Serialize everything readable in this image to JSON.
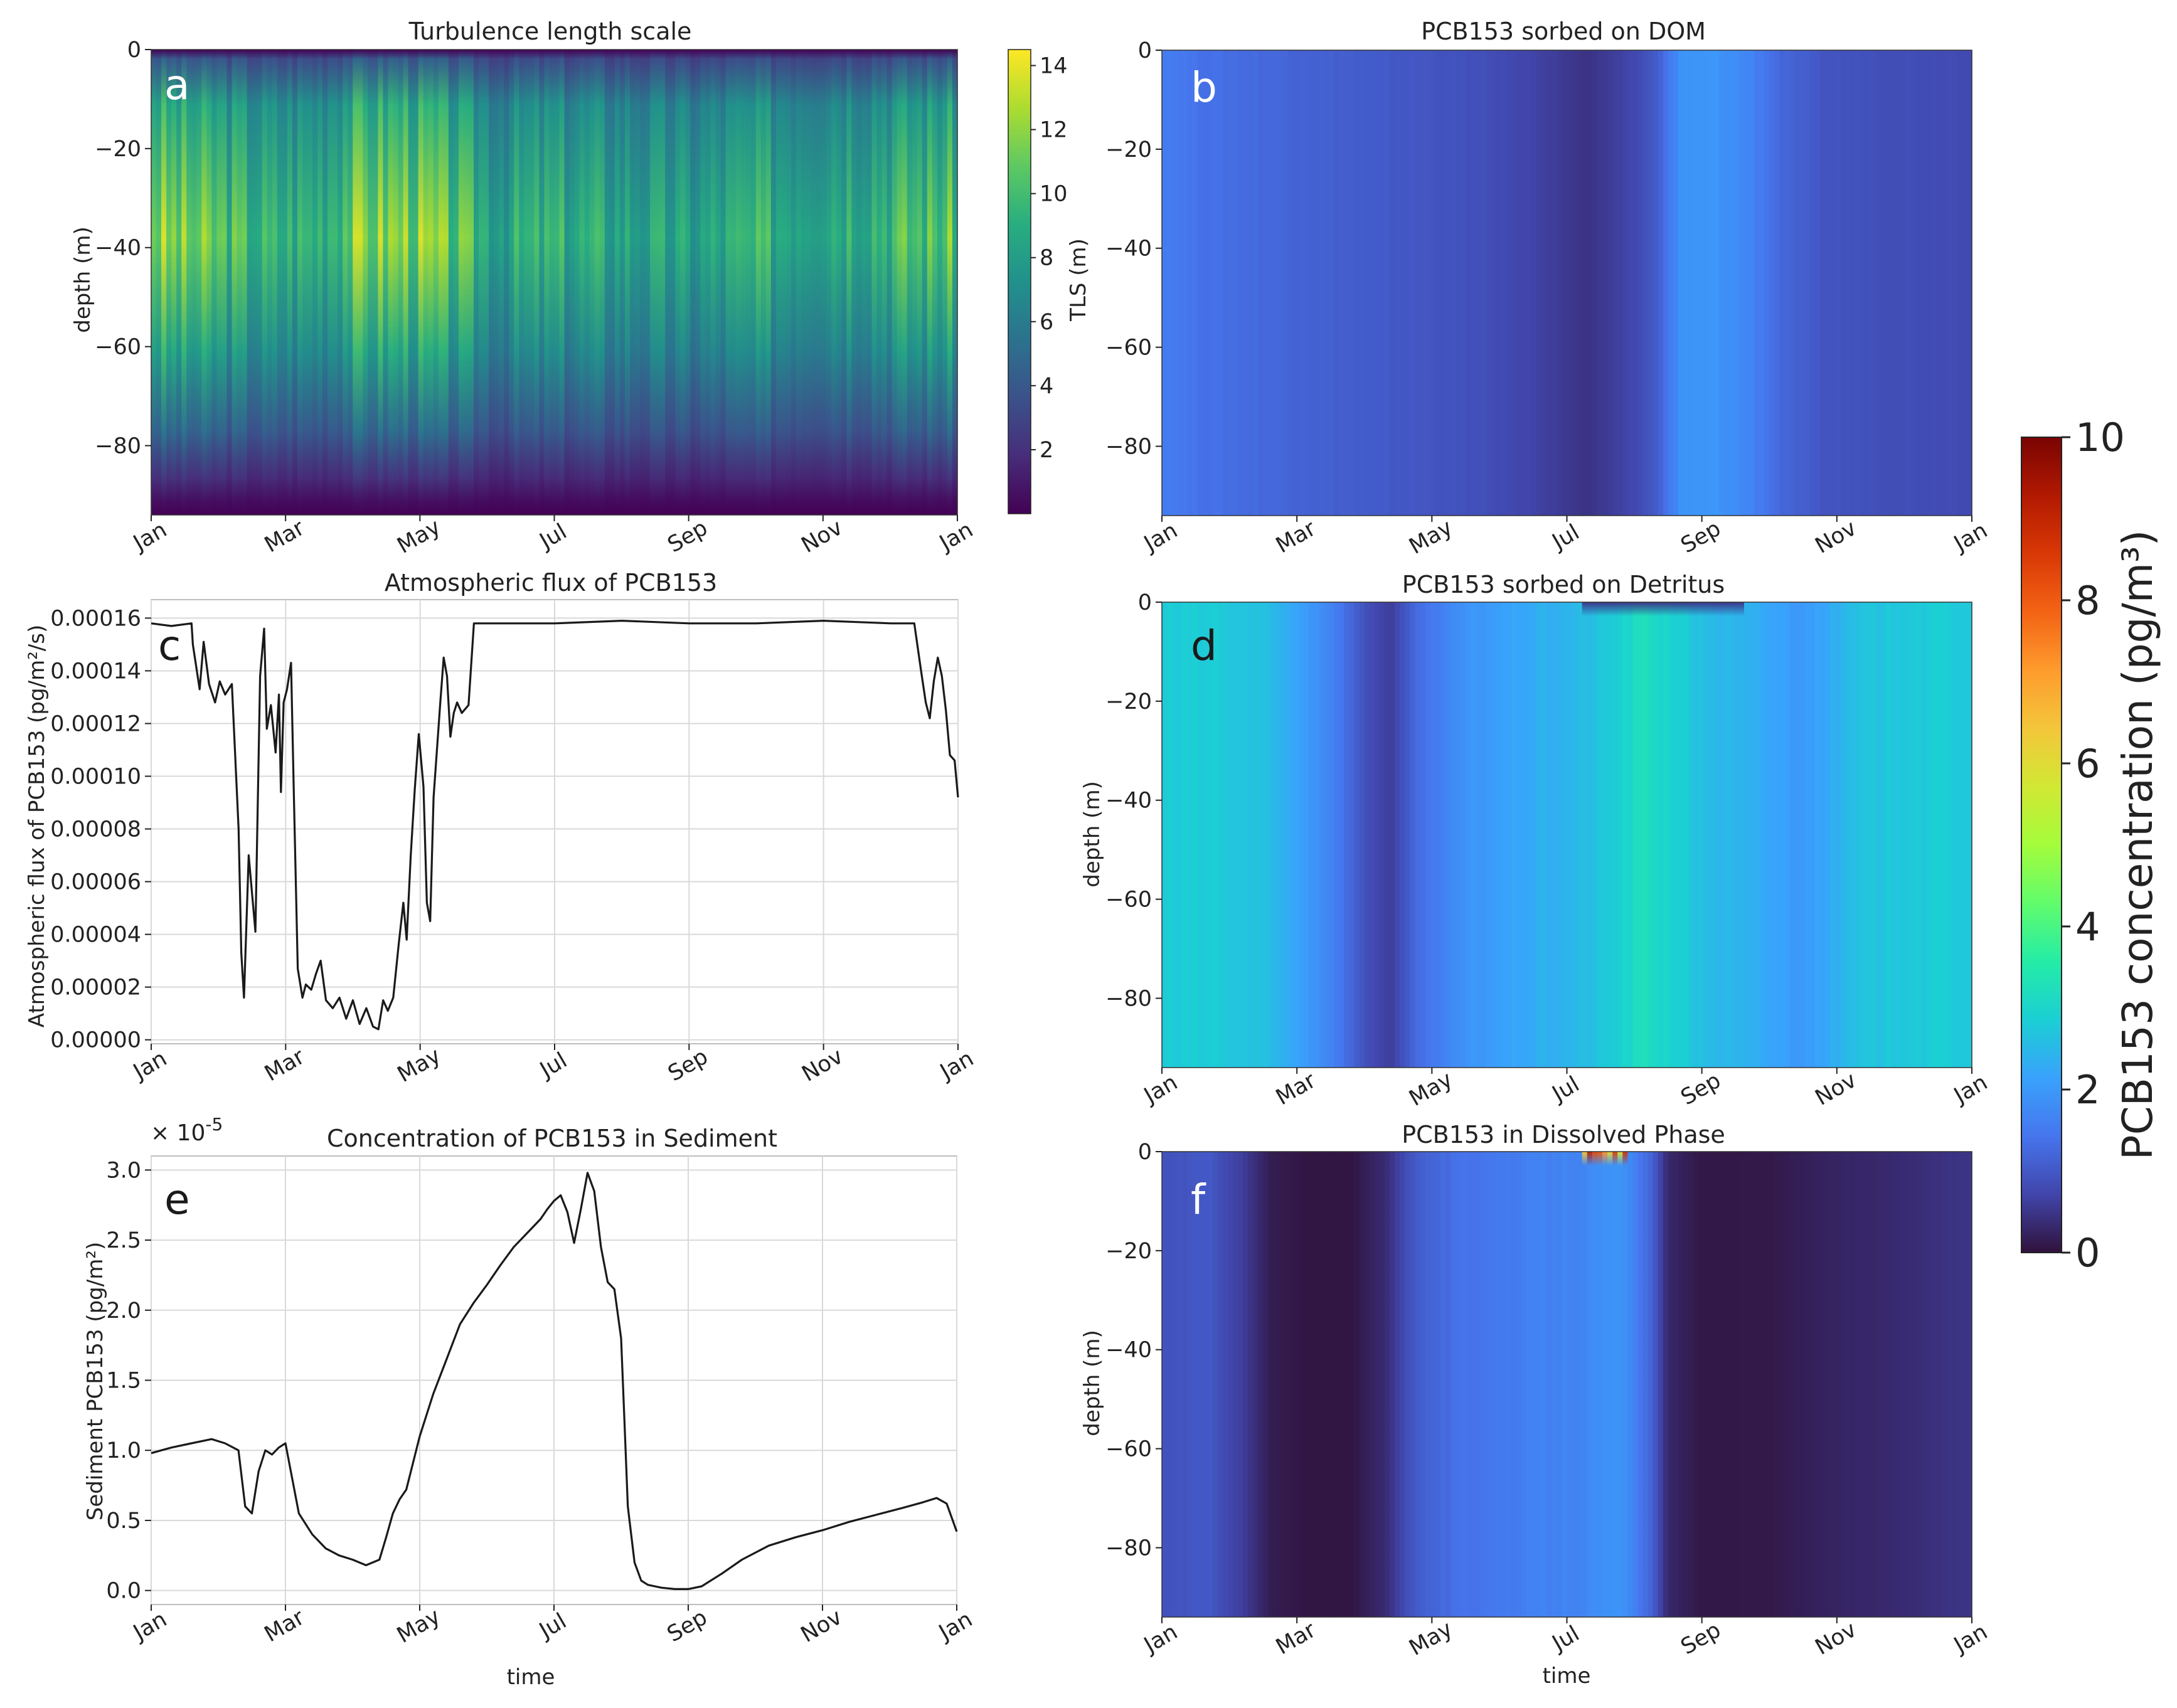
{
  "colors": {
    "viridis": [
      "#440154",
      "#472d7b",
      "#3b528b",
      "#2c728e",
      "#21918c",
      "#28ae80",
      "#5ec962",
      "#addc30",
      "#fde725"
    ],
    "turbo": [
      "#30123b",
      "#4145ab",
      "#4675ed",
      "#39a2fc",
      "#1bcfd4",
      "#24eca6",
      "#61fc6c",
      "#a4fc3b",
      "#d1e834",
      "#f3c63a",
      "#fe9b2d",
      "#f36315",
      "#d93806",
      "#b11901",
      "#7a0403"
    ],
    "line": "#1a1a1a",
    "grid": "#d9d9d9"
  },
  "shared_colorbar": {
    "label": "PCB153 concentration (pg/m³)",
    "ticks": [
      "10",
      "8",
      "6",
      "4",
      "2",
      "0"
    ],
    "range": [
      0,
      10
    ],
    "colormap": "turbo"
  },
  "chart_data": [
    {
      "id": "a",
      "type": "heatmap",
      "panel_letter": "a",
      "title": "Turbulence length scale",
      "ylabel": "depth (m)",
      "xlabel": "",
      "x_ticks": [
        "Jan",
        "Mar",
        "May",
        "Jul",
        "Sep",
        "Nov",
        "Jan"
      ],
      "y_ticks": [
        "0",
        "−20",
        "−40",
        "−60",
        "−80"
      ],
      "y_tick_values": [
        0,
        -20,
        -40,
        -60,
        -80
      ],
      "ylim": [
        -94,
        0
      ],
      "xlim_months": [
        0,
        12
      ],
      "colormap": "viridis",
      "colorbar": {
        "label": "TLS (m)",
        "ticks": [
          "14",
          "12",
          "10",
          "8",
          "6",
          "4",
          "2"
        ],
        "tick_values": [
          14,
          12,
          10,
          8,
          6,
          4,
          2
        ],
        "range": [
          0,
          14.5
        ]
      },
      "profile_peak_depth_m": -38,
      "seasonal_tls_peak_m": [
        {
          "month": 0.0,
          "tls": 12.5
        },
        {
          "month": 0.5,
          "tls": 11.5
        },
        {
          "month": 1.0,
          "tls": 11
        },
        {
          "month": 1.8,
          "tls": 9.5
        },
        {
          "month": 2.5,
          "tls": 10
        },
        {
          "month": 3.0,
          "tls": 12
        },
        {
          "month": 3.8,
          "tls": 12.5
        },
        {
          "month": 4.5,
          "tls": 11
        },
        {
          "month": 5.2,
          "tls": 9
        },
        {
          "month": 6.0,
          "tls": 9.5
        },
        {
          "month": 7.0,
          "tls": 9
        },
        {
          "month": 8.0,
          "tls": 8.5
        },
        {
          "month": 9.0,
          "tls": 9.5
        },
        {
          "month": 10.0,
          "tls": 10
        },
        {
          "month": 11.0,
          "tls": 10.5
        },
        {
          "month": 12.0,
          "tls": 11
        }
      ]
    },
    {
      "id": "b",
      "type": "heatmap",
      "panel_letter": "b",
      "title": "PCB153 sorbed on DOM",
      "ylabel": "",
      "xlabel": "",
      "x_ticks": [
        "Jan",
        "Mar",
        "May",
        "Jul",
        "Sep",
        "Nov",
        "Jan"
      ],
      "y_ticks": [
        "0",
        "−20",
        "−40",
        "−60",
        "−80"
      ],
      "y_tick_values": [
        0,
        -20,
        -40,
        -60,
        -80
      ],
      "ylim": [
        -94,
        0
      ],
      "xlim_months": [
        0,
        12
      ],
      "colormap": "turbo",
      "value_range": [
        0,
        10
      ],
      "seasonal_concentration": [
        {
          "month": 0.0,
          "value": 1.6
        },
        {
          "month": 0.5,
          "value": 1.4
        },
        {
          "month": 1.5,
          "value": 1.25
        },
        {
          "month": 3.0,
          "value": 1.05
        },
        {
          "month": 4.5,
          "value": 0.9
        },
        {
          "month": 5.5,
          "value": 0.7
        },
        {
          "month": 6.3,
          "value": 0.45
        },
        {
          "month": 6.9,
          "value": 0.7
        },
        {
          "month": 7.3,
          "value": 1.0
        },
        {
          "month": 7.7,
          "value": 1.9
        },
        {
          "month": 8.2,
          "value": 1.95
        },
        {
          "month": 8.7,
          "value": 1.7
        },
        {
          "month": 9.2,
          "value": 1.2
        },
        {
          "month": 9.8,
          "value": 0.95
        },
        {
          "month": 11.0,
          "value": 0.85
        },
        {
          "month": 12.0,
          "value": 0.8
        }
      ]
    },
    {
      "id": "c",
      "type": "line",
      "panel_letter": "c",
      "title": "Atmospheric flux of PCB153",
      "ylabel": "Atmospheric flux of PCB153 (pg/m²/s)",
      "xlabel": "",
      "x_ticks": [
        "Jan",
        "Mar",
        "May",
        "Jul",
        "Sep",
        "Nov",
        "Jan"
      ],
      "y_ticks": [
        "0.00016",
        "0.00014",
        "0.00012",
        "0.00010",
        "0.00008",
        "0.00006",
        "0.00004",
        "0.00002",
        "0.00000"
      ],
      "y_tick_values": [
        0.00016,
        0.00014,
        0.00012,
        0.0001,
        8e-05,
        6e-05,
        4e-05,
        2e-05,
        0
      ],
      "ylim": [
        -1.5e-06,
        0.000167
      ],
      "xlim_months": [
        0,
        12
      ],
      "grid": true,
      "series": [
        {
          "x_months": [
            0.0,
            0.3,
            0.6,
            0.62,
            0.72,
            0.78,
            0.86,
            0.95,
            1.02,
            1.1,
            1.2,
            1.3,
            1.34,
            1.38,
            1.45,
            1.55,
            1.62,
            1.68,
            1.72,
            1.78,
            1.85,
            1.9,
            1.93,
            1.97,
            2.02,
            2.08,
            2.12,
            2.18,
            2.25,
            2.3,
            2.38,
            2.45,
            2.52,
            2.6,
            2.7,
            2.8,
            2.9,
            3.0,
            3.1,
            3.2,
            3.3,
            3.38,
            3.45,
            3.52,
            3.6,
            3.68,
            3.75,
            3.8,
            3.86,
            3.92,
            3.98,
            4.05,
            4.1,
            4.15,
            4.2,
            4.3,
            4.35,
            4.4,
            4.45,
            4.5,
            4.55,
            4.62,
            4.72,
            4.8,
            4.85,
            4.9,
            5.0,
            6.0,
            7.0,
            8.0,
            9.0,
            10.0,
            11.0,
            11.35,
            11.45,
            11.52,
            11.58,
            11.64,
            11.7,
            11.76,
            11.82,
            11.88,
            11.95,
            12.0
          ],
          "y": [
            0.000158,
            0.000157,
            0.000158,
            0.00015,
            0.000133,
            0.000151,
            0.000135,
            0.000128,
            0.000136,
            0.000131,
            0.000135,
            8e-05,
            3.3e-05,
            1.6e-05,
            7e-05,
            4.1e-05,
            0.000138,
            0.000156,
            0.000118,
            0.000127,
            0.000109,
            0.000131,
            9.4e-05,
            0.000128,
            0.000133,
            0.000143,
            9.5e-05,
            2.7e-05,
            1.6e-05,
            2.1e-05,
            1.9e-05,
            2.5e-05,
            3e-05,
            1.5e-05,
            1.2e-05,
            1.6e-05,
            8e-06,
            1.5e-05,
            6e-06,
            1.2e-05,
            5e-06,
            4e-06,
            1.5e-05,
            1.1e-05,
            1.6e-05,
            3.6e-05,
            5.2e-05,
            3.8e-05,
            7e-05,
            9.5e-05,
            0.000116,
            9.6e-05,
            5.2e-05,
            4.5e-05,
            9.2e-05,
            0.000128,
            0.000145,
            0.000138,
            0.000115,
            0.000124,
            0.000128,
            0.000124,
            0.000127,
            0.000158,
            0.000158,
            0.000158,
            0.000158,
            0.000158,
            0.000159,
            0.000158,
            0.000158,
            0.000159,
            0.000158,
            0.000158,
            0.00014,
            0.000128,
            0.000122,
            0.000136,
            0.000145,
            0.000138,
            0.000125,
            0.000108,
            0.000106,
            9.2e-05
          ]
        }
      ]
    },
    {
      "id": "d",
      "type": "heatmap",
      "panel_letter": "d",
      "title": "PCB153 sorbed on Detritus",
      "ylabel": "depth (m)",
      "xlabel": "",
      "x_ticks": [
        "Jan",
        "Mar",
        "May",
        "Jul",
        "Sep",
        "Nov",
        "Jan"
      ],
      "y_ticks": [
        "0",
        "−20",
        "−40",
        "−60",
        "−80"
      ],
      "y_tick_values": [
        0,
        -20,
        -40,
        -60,
        -80
      ],
      "ylim": [
        -94,
        0
      ],
      "xlim_months": [
        0,
        12
      ],
      "colormap": "turbo",
      "value_range": [
        0,
        10
      ],
      "seasonal_concentration": [
        {
          "month": 0.0,
          "value": 2.8
        },
        {
          "month": 0.8,
          "value": 2.8
        },
        {
          "month": 1.5,
          "value": 2.6
        },
        {
          "month": 2.0,
          "value": 2.2
        },
        {
          "month": 2.5,
          "value": 1.7
        },
        {
          "month": 3.0,
          "value": 0.9
        },
        {
          "month": 3.4,
          "value": 0.6
        },
        {
          "month": 3.8,
          "value": 1.3
        },
        {
          "month": 4.5,
          "value": 1.9
        },
        {
          "month": 5.5,
          "value": 2.3
        },
        {
          "month": 6.2,
          "value": 2.5
        },
        {
          "month": 6.8,
          "value": 2.9
        },
        {
          "month": 7.1,
          "value": 3.2
        },
        {
          "month": 7.5,
          "value": 3.0
        },
        {
          "month": 8.0,
          "value": 2.6
        },
        {
          "month": 8.8,
          "value": 2.3
        },
        {
          "month": 9.5,
          "value": 2.0
        },
        {
          "month": 10.3,
          "value": 2.6
        },
        {
          "month": 11.0,
          "value": 2.8
        },
        {
          "month": 12.0,
          "value": 2.8
        }
      ]
    },
    {
      "id": "e",
      "type": "line",
      "panel_letter": "e",
      "title": "Concentration of PCB153 in Sediment",
      "ylabel": "Sediment PCB153 (pg/m²)",
      "xlabel": "time",
      "offset_label": "× 10",
      "offset_exponent": "-5",
      "x_ticks": [
        "Jan",
        "Mar",
        "May",
        "Jul",
        "Sep",
        "Nov",
        "Jan"
      ],
      "y_ticks": [
        "3.0",
        "2.5",
        "2.0",
        "1.5",
        "1.0",
        "0.5",
        "0.0"
      ],
      "y_tick_values": [
        3.0,
        2.5,
        2.0,
        1.5,
        1.0,
        0.5,
        0.0
      ],
      "ylim": [
        -0.1,
        3.1
      ],
      "xlim_months": [
        0,
        12
      ],
      "grid": true,
      "series": [
        {
          "x_months": [
            0.0,
            0.3,
            0.6,
            0.9,
            1.1,
            1.3,
            1.4,
            1.5,
            1.6,
            1.7,
            1.8,
            1.9,
            2.0,
            2.1,
            2.2,
            2.4,
            2.6,
            2.8,
            3.0,
            3.2,
            3.4,
            3.5,
            3.6,
            3.7,
            3.8,
            4.0,
            4.2,
            4.4,
            4.6,
            4.8,
            5.0,
            5.2,
            5.4,
            5.6,
            5.8,
            5.9,
            6.0,
            6.1,
            6.2,
            6.3,
            6.4,
            6.5,
            6.6,
            6.7,
            6.8,
            6.9,
            7.0,
            7.05,
            7.1,
            7.2,
            7.3,
            7.4,
            7.6,
            7.8,
            8.0,
            8.2,
            8.5,
            8.8,
            9.2,
            9.6,
            10.0,
            10.4,
            10.8,
            11.2,
            11.5,
            11.7,
            11.85,
            12.0
          ],
          "y": [
            0.98,
            1.02,
            1.05,
            1.08,
            1.05,
            1.0,
            0.6,
            0.55,
            0.85,
            1.0,
            0.97,
            1.02,
            1.05,
            0.8,
            0.55,
            0.4,
            0.3,
            0.25,
            0.22,
            0.18,
            0.22,
            0.38,
            0.55,
            0.65,
            0.72,
            1.1,
            1.4,
            1.65,
            1.9,
            2.05,
            2.18,
            2.32,
            2.45,
            2.55,
            2.65,
            2.72,
            2.78,
            2.82,
            2.7,
            2.48,
            2.72,
            2.98,
            2.85,
            2.45,
            2.2,
            2.15,
            1.8,
            1.2,
            0.6,
            0.2,
            0.07,
            0.04,
            0.02,
            0.01,
            0.01,
            0.03,
            0.12,
            0.22,
            0.32,
            0.38,
            0.43,
            0.49,
            0.54,
            0.59,
            0.63,
            0.66,
            0.62,
            0.42
          ]
        }
      ]
    },
    {
      "id": "f",
      "type": "heatmap",
      "panel_letter": "f",
      "title": "PCB153 in Dissolved Phase",
      "ylabel": "depth (m)",
      "xlabel": "time",
      "x_ticks": [
        "Jan",
        "Mar",
        "May",
        "Jul",
        "Sep",
        "Nov",
        "Jan"
      ],
      "y_ticks": [
        "0",
        "−20",
        "−40",
        "−60",
        "−80"
      ],
      "y_tick_values": [
        0,
        -20,
        -40,
        -60,
        -80
      ],
      "ylim": [
        -94,
        0
      ],
      "xlim_months": [
        0,
        12
      ],
      "colormap": "turbo",
      "value_range": [
        0,
        10
      ],
      "seasonal_concentration": [
        {
          "month": 0.0,
          "value": 0.9
        },
        {
          "month": 0.7,
          "value": 1.0
        },
        {
          "month": 1.2,
          "value": 0.6
        },
        {
          "month": 1.6,
          "value": 0.15
        },
        {
          "month": 2.2,
          "value": 0.05
        },
        {
          "month": 2.8,
          "value": 0.05
        },
        {
          "month": 3.3,
          "value": 0.35
        },
        {
          "month": 3.8,
          "value": 1.1
        },
        {
          "month": 4.5,
          "value": 1.4
        },
        {
          "month": 5.5,
          "value": 1.6
        },
        {
          "month": 6.2,
          "value": 1.7
        },
        {
          "month": 6.8,
          "value": 1.9
        },
        {
          "month": 7.2,
          "value": 1.3
        },
        {
          "month": 7.5,
          "value": 0.3
        },
        {
          "month": 8.0,
          "value": 0.08
        },
        {
          "month": 9.0,
          "value": 0.1
        },
        {
          "month": 10.0,
          "value": 0.25
        },
        {
          "month": 11.0,
          "value": 0.35
        },
        {
          "month": 12.0,
          "value": 0.5
        }
      ],
      "surface_hotspot": {
        "month_start": 6.2,
        "month_end": 6.9,
        "peak_value": 9.5
      }
    }
  ]
}
